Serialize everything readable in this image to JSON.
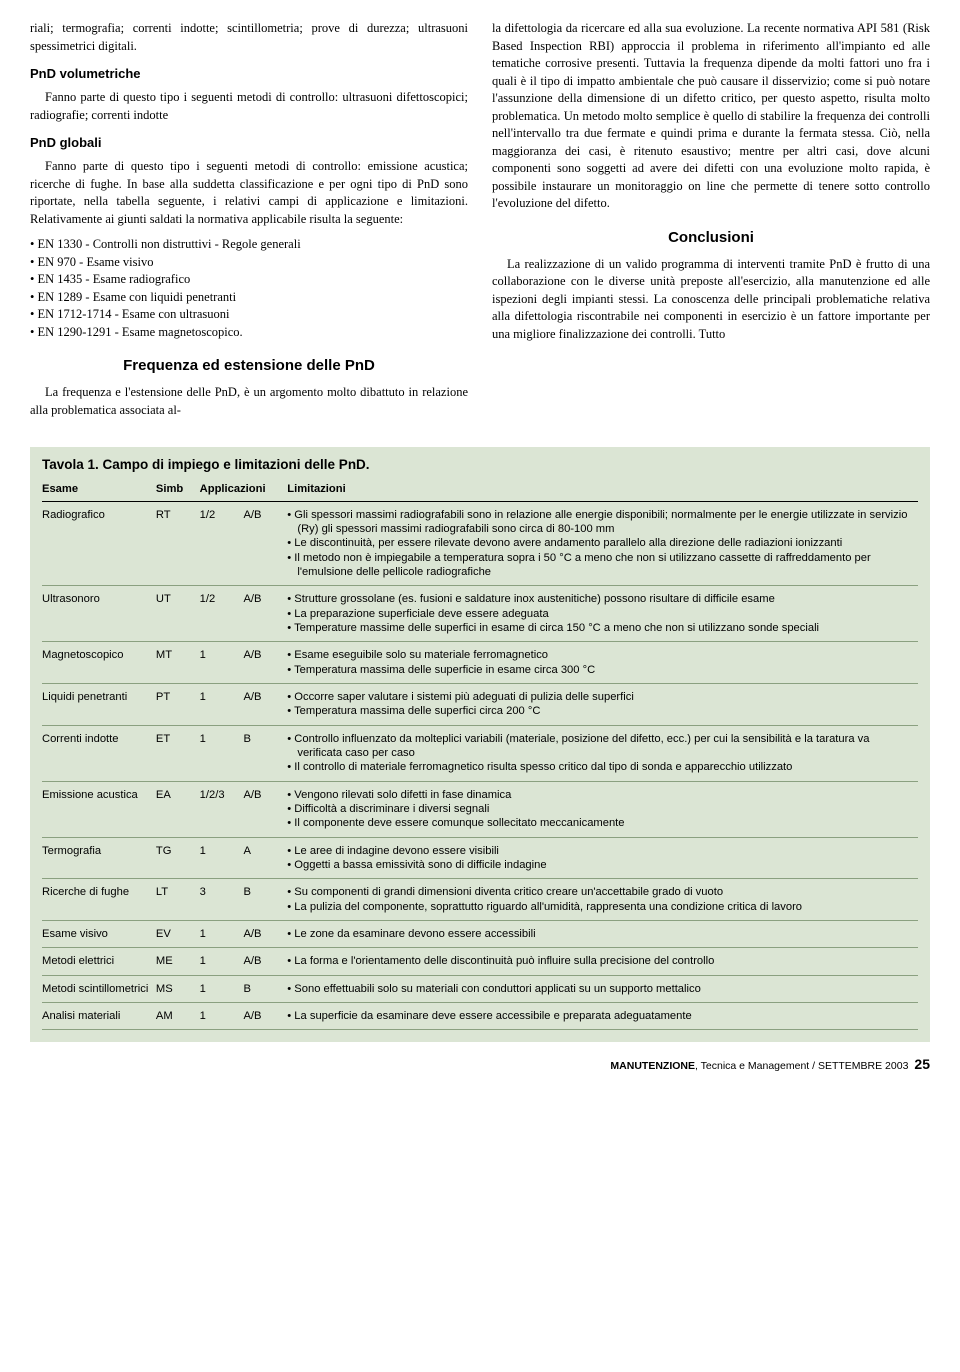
{
  "colLeft": {
    "p1": "riali; termografia; correnti indotte; scintillometria; prove di durezza; ultrasuoni spessimetrici digitali.",
    "h1": "PnD volumetriche",
    "p2": "Fanno parte di questo tipo i seguenti metodi di controllo: ultrasuoni difettoscopici; radiografie; correnti indotte",
    "h2": "PnD globali",
    "p3": "Fanno parte di questo tipo i seguenti metodi di controllo: emissione acustica; ricerche di fughe. In base alla suddetta classificazione e per ogni tipo di PnD sono riportate, nella tabella seguente, i relativi campi di applicazione e limitazioni. Relativamente ai giunti saldati la normativa applicabile risulta la seguente:",
    "norms": [
      "EN 1330 - Controlli non distruttivi - Regole generali",
      "EN 970 - Esame visivo",
      "EN 1435 - Esame radiografico",
      "EN 1289 - Esame con liquidi penetranti",
      "EN 1712-1714 - Esame con ultrasuoni",
      "EN 1290-1291 - Esame magnetoscopico."
    ],
    "sec1": "Frequenza ed estensione delle PnD",
    "p4": "La frequenza e l'estensione delle PnD, è un argomento molto dibattuto in relazione alla problematica associata al-"
  },
  "colRight": {
    "p1": "la difettologia da ricercare ed alla sua evoluzione. La recente normativa API 581 (Risk Based Inspection RBI) approccia il problema in riferimento all'impianto ed alle tematiche corrosive presenti. Tuttavia la frequenza dipende da molti fattori uno fra i quali è il tipo di impatto ambientale che può causare il disservizio; come si può notare l'assunzione della dimensione di un difetto critico, per questo aspetto, risulta molto problematica. Un metodo molto semplice è quello di stabilire la frequenza dei controlli nell'intervallo tra due fermate e quindi prima e durante la fermata stessa. Ciò, nella maggioranza dei casi, è ritenuto esaustivo; mentre per altri casi, dove alcuni componenti sono soggetti ad avere dei difetti con una evoluzione molto rapida, è possibile instaurare un monitoraggio on line che permette di tenere sotto controllo l'evoluzione del difetto.",
    "sec1": "Conclusioni",
    "p2": "La realizzazione di un valido programma di interventi tramite PnD è frutto di una collaborazione con le diverse unità preposte all'esercizio, alla manutenzione ed alle ispezioni degli impianti stessi. La conoscenza delle principali problematiche relativa alla difettologia riscontrabile nei componenti in esercizio è un fattore importante per una migliore finalizzazione dei controlli. Tutto"
  },
  "table": {
    "title": "Tavola 1. Campo di impiego e limitazioni delle PnD.",
    "headers": [
      "Esame",
      "Simb",
      "Applicazioni",
      "Limitazioni"
    ],
    "rows": [
      {
        "esame": "Radiografico",
        "simb": "RT",
        "app1": "1/2",
        "app2": "A/B",
        "limit": [
          "Gli spessori massimi radiografabili sono in relazione alle energie disponibili; normalmente per le energie utilizzate in servizio (Ry) gli spessori massimi radiografabili sono circa di 80-100 mm",
          "Le discontinuità, per essere rilevate devono avere andamento parallelo alla direzione delle radiazioni ionizzanti",
          "Il metodo non è impiegabile a temperatura sopra i 50 °C a meno che non si utilizzano cassette di raffreddamento per l'emulsione delle pellicole radiografiche"
        ]
      },
      {
        "esame": "Ultrasonoro",
        "simb": "UT",
        "app1": "1/2",
        "app2": "A/B",
        "limit": [
          "Strutture grossolane (es. fusioni e saldature inox austenitiche) possono risultare di difficile esame",
          "La preparazione superficiale deve essere adeguata",
          "Temperature massime delle superfici in esame di circa 150 °C a meno che non si utilizzano sonde speciali"
        ]
      },
      {
        "esame": "Magnetoscopico",
        "simb": "MT",
        "app1": "1",
        "app2": "A/B",
        "limit": [
          "Esame eseguibile solo su materiale ferromagnetico",
          "Temperatura massima delle superficie in esame circa 300 °C"
        ]
      },
      {
        "esame": "Liquidi penetranti",
        "simb": "PT",
        "app1": "1",
        "app2": "A/B",
        "limit": [
          "Occorre saper valutare i sistemi più adeguati di pulizia delle superfici",
          "Temperatura massima delle superfici circa 200 °C"
        ]
      },
      {
        "esame": "Correnti indotte",
        "simb": "ET",
        "app1": "1",
        "app2": "B",
        "limit": [
          "Controllo influenzato da molteplici variabili (materiale, posizione del difetto, ecc.) per cui la sensibilità e la taratura va verificata caso per caso",
          "Il controllo di materiale ferromagnetico risulta spesso critico dal tipo di sonda e apparecchio utilizzato"
        ]
      },
      {
        "esame": "Emissione acustica",
        "simb": "EA",
        "app1": "1/2/3",
        "app2": "A/B",
        "limit": [
          "Vengono rilevati solo difetti in fase dinamica",
          "Difficoltà a discriminare i diversi segnali",
          "Il componente deve essere comunque sollecitato meccanicamente"
        ]
      },
      {
        "esame": "Termografia",
        "simb": "TG",
        "app1": "1",
        "app2": "A",
        "limit": [
          "Le aree di indagine devono essere visibili",
          "Oggetti a bassa emissività sono di difficile indagine"
        ]
      },
      {
        "esame": "Ricerche di fughe",
        "simb": "LT",
        "app1": "3",
        "app2": "B",
        "limit": [
          "Su componenti di grandi dimensioni diventa critico creare un'accettabile grado di vuoto",
          "La pulizia del componente, soprattutto riguardo all'umidità, rappresenta una condizione critica di lavoro"
        ]
      },
      {
        "esame": "Esame visivo",
        "simb": "EV",
        "app1": "1",
        "app2": "A/B",
        "limit": [
          "Le zone da esaminare devono essere accessibili"
        ]
      },
      {
        "esame": "Metodi elettrici",
        "simb": "ME",
        "app1": "1",
        "app2": "A/B",
        "limit": [
          "La forma e l'orientamento delle discontinuità può influire sulla precisione del controllo"
        ]
      },
      {
        "esame": "Metodi scintillometrici",
        "simb": "MS",
        "app1": "1",
        "app2": "B",
        "limit": [
          "Sono effettuabili solo su materiali con conduttori applicati su un supporto mettalico"
        ]
      },
      {
        "esame": "Analisi materiali",
        "simb": "AM",
        "app1": "1",
        "app2": "A/B",
        "limit": [
          "La superficie da esaminare deve essere accessibile e preparata adeguatamente"
        ]
      }
    ]
  },
  "footer": {
    "mag": "MANUTENZIONE",
    "rest": ", Tecnica e Management / SETTEMBRE 2003",
    "page": "25"
  }
}
